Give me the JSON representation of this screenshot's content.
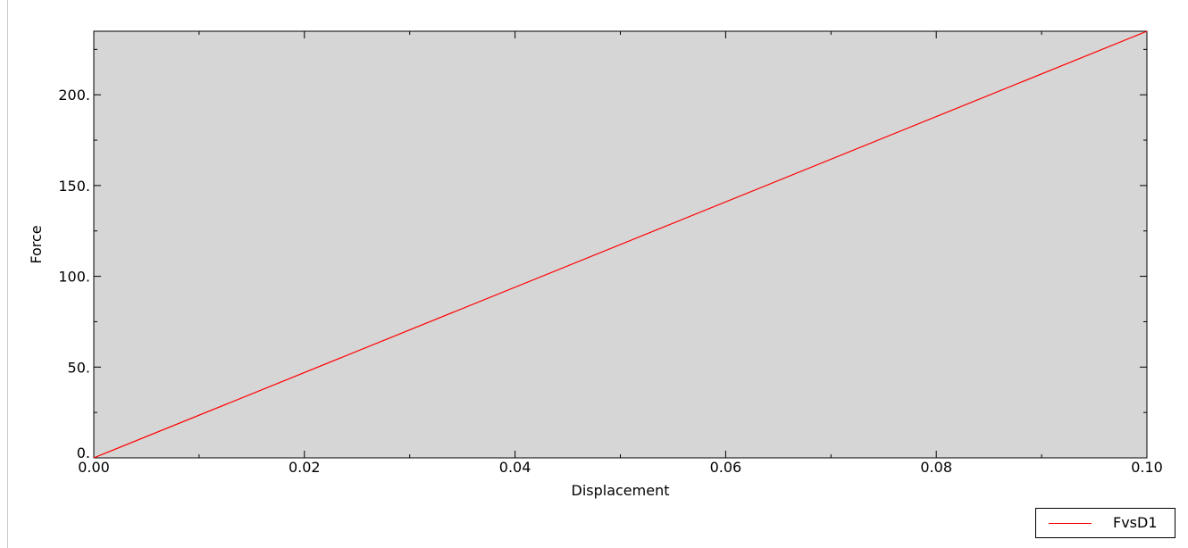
{
  "chart_data": {
    "type": "line",
    "xlabel": "Displacement",
    "ylabel": "Force",
    "xlim": [
      0,
      0.1
    ],
    "ylim": [
      0,
      235
    ],
    "x_ticks": [
      {
        "value": 0.0,
        "label": "0.00"
      },
      {
        "value": 0.02,
        "label": "0.02"
      },
      {
        "value": 0.04,
        "label": "0.04"
      },
      {
        "value": 0.06,
        "label": "0.06"
      },
      {
        "value": 0.08,
        "label": "0.08"
      },
      {
        "value": 0.1,
        "label": "0.10"
      }
    ],
    "x_minor_ticks": [
      0.01,
      0.03,
      0.05,
      0.07,
      0.09
    ],
    "y_ticks": [
      {
        "value": 0,
        "label": "0."
      },
      {
        "value": 50,
        "label": "50."
      },
      {
        "value": 100,
        "label": "100."
      },
      {
        "value": 150,
        "label": "150."
      },
      {
        "value": 200,
        "label": "200."
      }
    ],
    "y_minor_ticks": [
      25,
      75,
      125,
      175,
      225
    ],
    "grid": false,
    "legend_position": "bottom-right",
    "series": [
      {
        "name": "FvsD1",
        "color": "#ff0000",
        "x": [
          0,
          0.1
        ],
        "y": [
          0,
          235
        ]
      }
    ]
  },
  "colors": {
    "plot_background": "#d6d6d6",
    "axis": "#000000"
  }
}
